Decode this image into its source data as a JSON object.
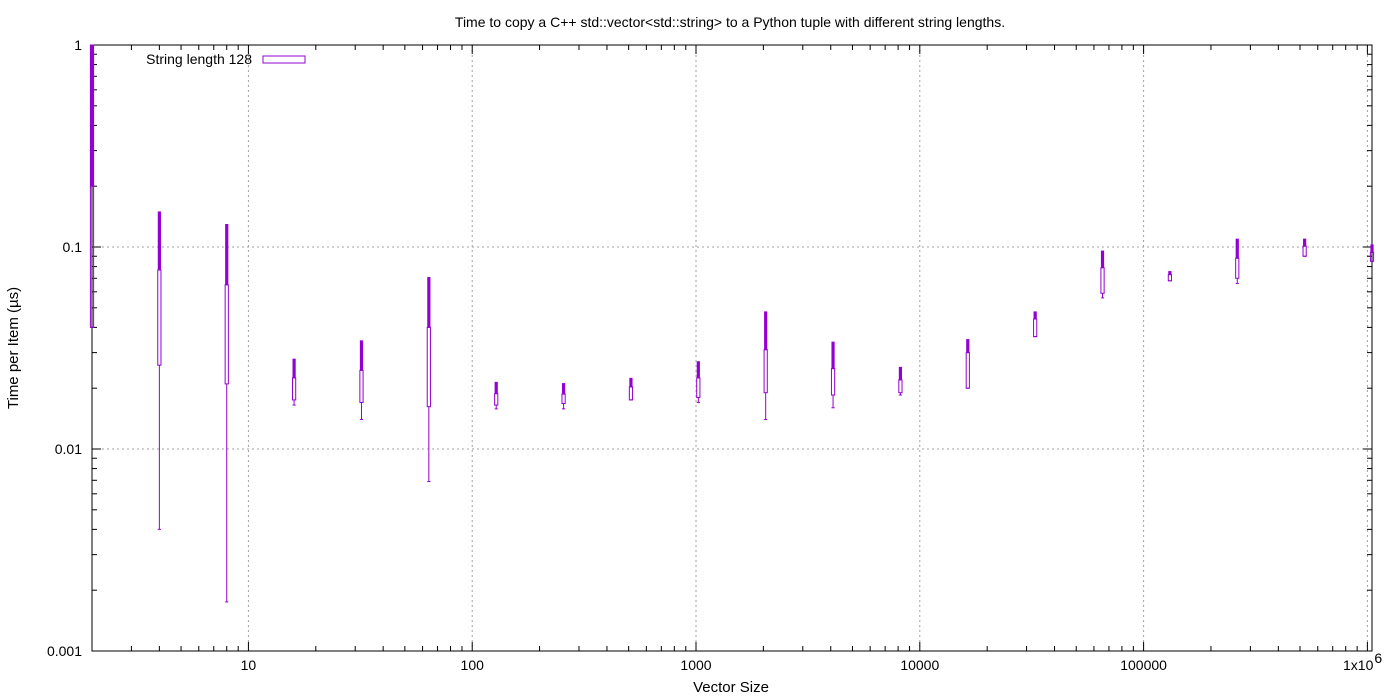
{
  "chart_data": {
    "type": "candlestick",
    "title": "Time to copy a C++ std::vector<std::string> to a Python tuple with different string lengths.",
    "xlabel": "Vector Size",
    "ylabel": "Time per Item (µs)",
    "x_scale": "log",
    "y_scale": "log",
    "xlim": [
      2,
      1048576
    ],
    "ylim": [
      0.001,
      1
    ],
    "x_ticks": [
      {
        "value": 10,
        "label": "10",
        "sup": ""
      },
      {
        "value": 100,
        "label": "100",
        "sup": ""
      },
      {
        "value": 1000,
        "label": "1000",
        "sup": ""
      },
      {
        "value": 10000,
        "label": "10000",
        "sup": ""
      },
      {
        "value": 100000,
        "label": "100000",
        "sup": ""
      },
      {
        "value": 1000000,
        "label": "1x10",
        "sup": "6"
      }
    ],
    "y_ticks": [
      {
        "value": 0.001,
        "label": "0.001"
      },
      {
        "value": 0.01,
        "label": "0.01"
      },
      {
        "value": 0.1,
        "label": "0.1"
      },
      {
        "value": 1,
        "label": "1"
      }
    ],
    "grid": true,
    "legend_position": "top-left",
    "series": [
      {
        "name": "String length 128",
        "color": "#9400d3",
        "points": [
          {
            "x": 2,
            "min": 0.04,
            "q1": 0.04,
            "median": 0.2,
            "q3": 1.0,
            "max": 1.0
          },
          {
            "x": 4,
            "min": 0.004,
            "q1": 0.026,
            "median": 0.077,
            "q3": 0.077,
            "max": 0.15
          },
          {
            "x": 8,
            "min": 0.00175,
            "q1": 0.021,
            "median": 0.065,
            "q3": 0.065,
            "max": 0.13
          },
          {
            "x": 16,
            "min": 0.0165,
            "q1": 0.0175,
            "median": 0.0225,
            "q3": 0.0225,
            "max": 0.028
          },
          {
            "x": 32,
            "min": 0.014,
            "q1": 0.017,
            "median": 0.0245,
            "q3": 0.0245,
            "max": 0.0345
          },
          {
            "x": 64,
            "min": 0.0069,
            "q1": 0.0162,
            "median": 0.04,
            "q3": 0.04,
            "max": 0.071
          },
          {
            "x": 128,
            "min": 0.0158,
            "q1": 0.0165,
            "median": 0.0188,
            "q3": 0.0188,
            "max": 0.0215
          },
          {
            "x": 256,
            "min": 0.0158,
            "q1": 0.0168,
            "median": 0.0187,
            "q3": 0.0187,
            "max": 0.0212
          },
          {
            "x": 512,
            "min": 0.0175,
            "q1": 0.0175,
            "median": 0.0203,
            "q3": 0.0203,
            "max": 0.0225
          },
          {
            "x": 1024,
            "min": 0.017,
            "q1": 0.018,
            "median": 0.0225,
            "q3": 0.0225,
            "max": 0.0272
          },
          {
            "x": 2048,
            "min": 0.014,
            "q1": 0.019,
            "median": 0.031,
            "q3": 0.031,
            "max": 0.048
          },
          {
            "x": 4096,
            "min": 0.016,
            "q1": 0.0185,
            "median": 0.025,
            "q3": 0.025,
            "max": 0.034
          },
          {
            "x": 8192,
            "min": 0.0185,
            "q1": 0.019,
            "median": 0.022,
            "q3": 0.022,
            "max": 0.0255
          },
          {
            "x": 16384,
            "min": 0.02,
            "q1": 0.02,
            "median": 0.03,
            "q3": 0.03,
            "max": 0.035
          },
          {
            "x": 32768,
            "min": 0.036,
            "q1": 0.036,
            "median": 0.044,
            "q3": 0.044,
            "max": 0.048
          },
          {
            "x": 65536,
            "min": 0.056,
            "q1": 0.059,
            "median": 0.079,
            "q3": 0.079,
            "max": 0.096
          },
          {
            "x": 131072,
            "min": 0.068,
            "q1": 0.068,
            "median": 0.073,
            "q3": 0.073,
            "max": 0.076
          },
          {
            "x": 262144,
            "min": 0.066,
            "q1": 0.07,
            "median": 0.088,
            "q3": 0.088,
            "max": 0.11
          },
          {
            "x": 524288,
            "min": 0.09,
            "q1": 0.09,
            "median": 0.101,
            "q3": 0.101,
            "max": 0.11
          },
          {
            "x": 1048576,
            "min": 0.085,
            "q1": 0.085,
            "median": 0.094,
            "q3": 0.094,
            "max": 0.103
          }
        ]
      }
    ]
  }
}
